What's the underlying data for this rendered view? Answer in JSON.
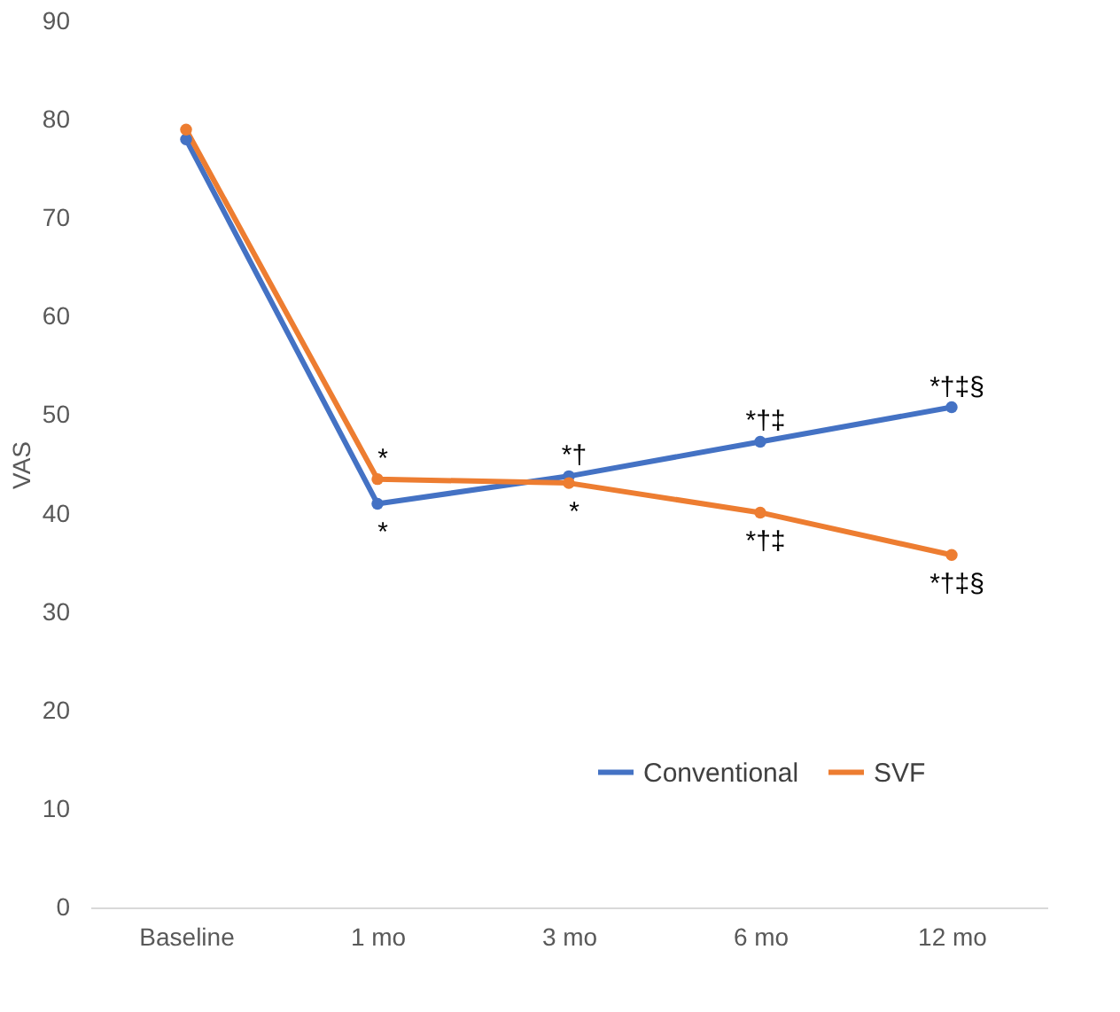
{
  "chart_data": {
    "type": "line",
    "ylabel": "VAS",
    "categories": [
      "Baseline",
      "1 mo",
      "3 mo",
      "6 mo",
      "12 mo"
    ],
    "series": [
      {
        "name": "Conventional",
        "color": "#4472c4",
        "values": [
          78.0,
          41.0,
          43.8,
          47.3,
          50.8
        ]
      },
      {
        "name": "SVF",
        "color": "#ed7d31",
        "values": [
          79.0,
          43.5,
          43.1,
          40.1,
          35.8
        ]
      }
    ],
    "ylim": [
      0,
      90
    ],
    "yticks": [
      0,
      10,
      20,
      30,
      40,
      50,
      60,
      70,
      80,
      90
    ],
    "grid": false,
    "legend": "bottom right",
    "marker": "circle",
    "line_style": "solid",
    "annotations": [
      {
        "text": "*",
        "x": "1 mo",
        "y": 41.0
      },
      {
        "text": "*",
        "x": "1 mo",
        "y": 43.5
      },
      {
        "text": "*†",
        "x": "3 mo",
        "y": 43.8
      },
      {
        "text": "*",
        "x": "3 mo",
        "y": 43.1
      },
      {
        "text": "*†‡",
        "x": "6 mo",
        "y": 47.3
      },
      {
        "text": "*†‡",
        "x": "6 mo",
        "y": 40.1
      },
      {
        "text": "*†‡§",
        "x": "12 mo",
        "y": 50.8
      },
      {
        "text": "*†‡§",
        "x": "12 mo",
        "y": 35.8
      }
    ]
  }
}
